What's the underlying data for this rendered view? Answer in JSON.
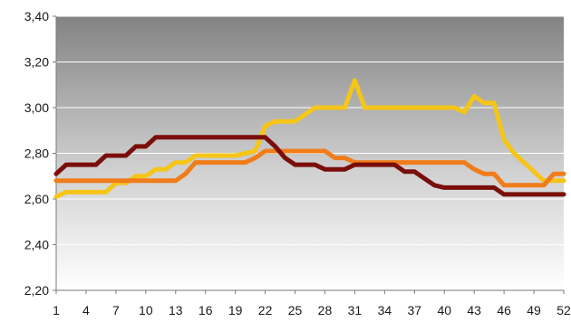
{
  "chart_data": {
    "type": "line",
    "title": "",
    "xlabel": "",
    "ylabel": "",
    "x": [
      1,
      2,
      3,
      4,
      5,
      6,
      7,
      8,
      9,
      10,
      11,
      12,
      13,
      14,
      15,
      16,
      17,
      18,
      19,
      20,
      21,
      22,
      23,
      24,
      25,
      26,
      27,
      28,
      29,
      30,
      31,
      32,
      33,
      34,
      35,
      36,
      37,
      38,
      39,
      40,
      41,
      42,
      43,
      44,
      45,
      46,
      47,
      48,
      49,
      50,
      51,
      52
    ],
    "x_tick_labels": [
      "1",
      "4",
      "7",
      "10",
      "13",
      "16",
      "19",
      "22",
      "25",
      "28",
      "31",
      "34",
      "37",
      "40",
      "43",
      "46",
      "49",
      "52"
    ],
    "y_tick_labels": [
      "2,20",
      "2,40",
      "2,60",
      "2,80",
      "3,00",
      "3,20",
      "3,40"
    ],
    "y_ticks": [
      2.2,
      2.4,
      2.6,
      2.8,
      3.0,
      3.2,
      3.4
    ],
    "ylim": [
      2.2,
      3.4
    ],
    "xlim": [
      1,
      52
    ],
    "grid": true,
    "legend": "none",
    "colors": {
      "plot_top": "#838383",
      "plot_bottom": "#ffffff",
      "axis": "#7a7a7a"
    },
    "series": [
      {
        "color": "#f5c518",
        "values": [
          2.61,
          2.63,
          2.63,
          2.63,
          2.63,
          2.63,
          2.67,
          2.67,
          2.7,
          2.7,
          2.73,
          2.73,
          2.76,
          2.76,
          2.79,
          2.79,
          2.79,
          2.79,
          2.79,
          2.8,
          2.81,
          2.92,
          2.94,
          2.94,
          2.94,
          2.97,
          3.0,
          3.0,
          3.0,
          3.0,
          3.12,
          3.0,
          3.0,
          3.0,
          3.0,
          3.0,
          3.0,
          3.0,
          3.0,
          3.0,
          3.0,
          2.98,
          3.05,
          3.02,
          3.02,
          2.86,
          2.8,
          2.76,
          2.72,
          2.68,
          2.68,
          2.68
        ]
      },
      {
        "color": "#f07c1a",
        "values": [
          2.68,
          2.68,
          2.68,
          2.68,
          2.68,
          2.68,
          2.68,
          2.68,
          2.68,
          2.68,
          2.68,
          2.68,
          2.68,
          2.71,
          2.76,
          2.76,
          2.76,
          2.76,
          2.76,
          2.76,
          2.78,
          2.81,
          2.81,
          2.81,
          2.81,
          2.81,
          2.81,
          2.81,
          2.78,
          2.78,
          2.76,
          2.76,
          2.76,
          2.76,
          2.76,
          2.76,
          2.76,
          2.76,
          2.76,
          2.76,
          2.76,
          2.76,
          2.73,
          2.71,
          2.71,
          2.66,
          2.66,
          2.66,
          2.66,
          2.66,
          2.71,
          2.71
        ]
      },
      {
        "color": "#7a0e0a",
        "values": [
          2.71,
          2.75,
          2.75,
          2.75,
          2.75,
          2.79,
          2.79,
          2.79,
          2.83,
          2.83,
          2.87,
          2.87,
          2.87,
          2.87,
          2.87,
          2.87,
          2.87,
          2.87,
          2.87,
          2.87,
          2.87,
          2.87,
          2.83,
          2.78,
          2.75,
          2.75,
          2.75,
          2.73,
          2.73,
          2.73,
          2.75,
          2.75,
          2.75,
          2.75,
          2.75,
          2.72,
          2.72,
          2.69,
          2.66,
          2.65,
          2.65,
          2.65,
          2.65,
          2.65,
          2.65,
          2.62,
          2.62,
          2.62,
          2.62,
          2.62,
          2.62,
          2.62
        ]
      }
    ]
  }
}
